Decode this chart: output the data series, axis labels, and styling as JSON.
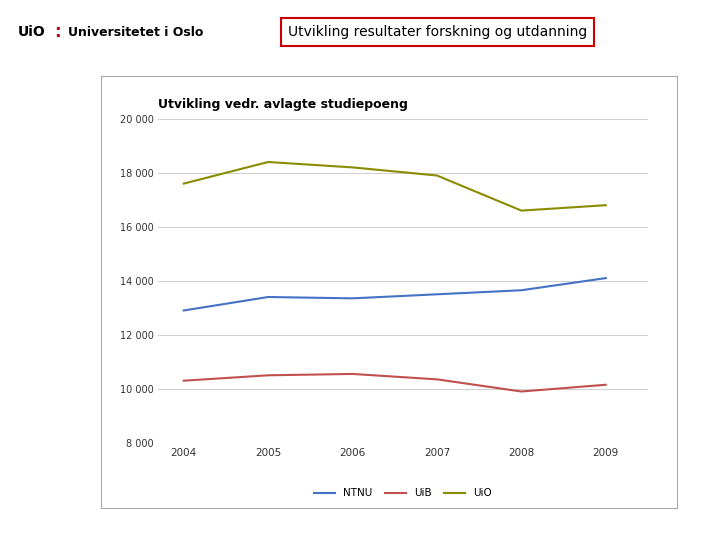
{
  "title_header": "Utvikling resultater forskning og utdanning",
  "chart_title": "Utvikling vedr. avlagte studiepoeng",
  "years": [
    2004,
    2005,
    2006,
    2007,
    2008,
    2009
  ],
  "NTNU": [
    12900,
    13400,
    13350,
    13500,
    13650,
    14100
  ],
  "UiB": [
    10300,
    10500,
    10550,
    10350,
    9900,
    10150
  ],
  "UiO": [
    17600,
    18400,
    18200,
    17900,
    16600,
    16800
  ],
  "NTNU_color": "#4472C4",
  "UiB_color": "#C0504D",
  "UiO_color": "#8B8B00",
  "ylim": [
    8000,
    20000
  ],
  "yticks": [
    8000,
    10000,
    12000,
    14000,
    16000,
    18000,
    20000
  ],
  "ytick_labels": [
    "8 000",
    "10 000",
    "12 000",
    "14 000",
    "16 000",
    "18 000",
    "20 000"
  ],
  "bg_color": "#FFFFFF",
  "chart_bg": "#FFFFFF",
  "grid_color": "#C8C8C8",
  "header_box_color": "#CC0000",
  "fig_bg": "#FFFFFF"
}
